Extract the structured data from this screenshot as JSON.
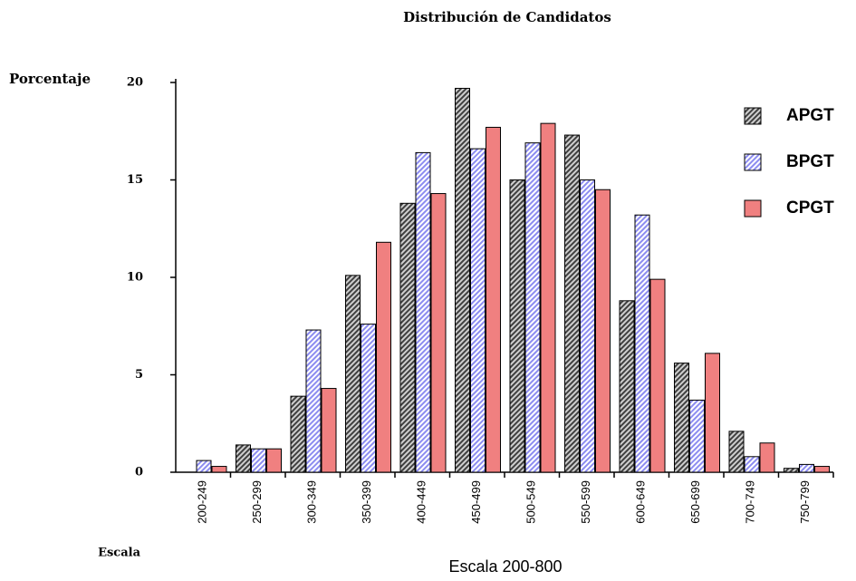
{
  "chart_data": {
    "type": "bar",
    "title": "Distribución de Candidatos",
    "y_label": "Porcentaje",
    "x_label": "Escala 200-800",
    "x_axis_name": "Escala",
    "categories": [
      "200-249",
      "250-299",
      "300-349",
      "350-399",
      "400-449",
      "450-499",
      "500-549",
      "550-599",
      "600-649",
      "650-699",
      "700-749",
      "750-799"
    ],
    "series": [
      {
        "name": "APGT",
        "color": "#404040",
        "values": [
          0,
          1.4,
          3.9,
          10.1,
          13.8,
          19.7,
          15.0,
          17.3,
          8.8,
          5.6,
          2.1,
          0.2
        ]
      },
      {
        "name": "BPGT",
        "color": "#8c8cf0",
        "values": [
          0.6,
          1.2,
          7.3,
          7.6,
          16.4,
          16.6,
          16.9,
          15.0,
          13.2,
          3.7,
          0.8,
          0.4
        ]
      },
      {
        "name": "CPGT",
        "color": "#f08080",
        "values": [
          0.3,
          1.2,
          4.3,
          11.8,
          14.3,
          17.7,
          17.9,
          14.5,
          9.9,
          6.1,
          1.5,
          0.3
        ]
      }
    ],
    "ylim": [
      0,
      20
    ],
    "yticks": [
      0,
      5,
      10,
      15,
      20
    ],
    "grid": false,
    "legend": "right"
  }
}
